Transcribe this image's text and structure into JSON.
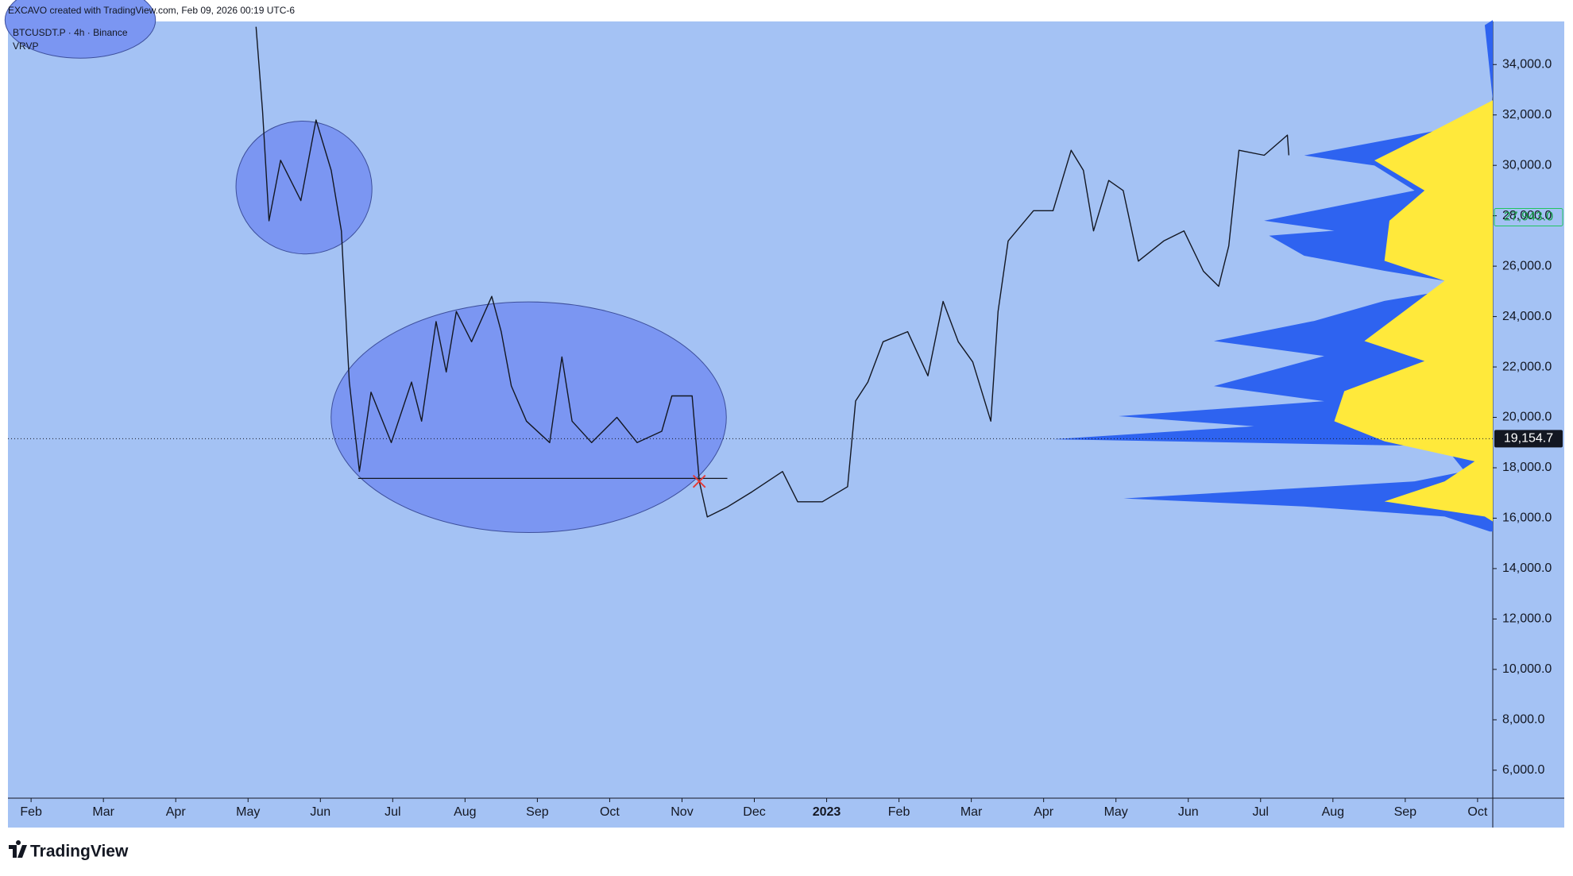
{
  "header": "EXCAVO created with TradingView.com, Feb 09, 2026 00:19 UTC-6",
  "chart_data": {
    "type": "line",
    "symbol": "BTCUSDT.P · 4h · Binance",
    "indicator": "VRVP",
    "color": "#131722",
    "x": [
      4.11,
      4.2,
      4.29,
      4.45,
      4.73,
      4.94,
      5.15,
      5.29,
      5.4,
      5.54,
      5.7,
      5.98,
      6.26,
      6.4,
      6.6,
      6.74,
      6.88,
      7.09,
      7.37,
      7.5,
      7.64,
      7.85,
      8.17,
      8.34,
      8.48,
      8.75,
      9.1,
      9.38,
      9.72,
      9.86,
      10.14,
      10.24,
      10.35,
      10.63,
      10.97,
      11.39,
      11.6,
      11.94,
      12.29,
      12.4,
      12.57,
      12.78,
      13.12,
      13.4,
      13.61,
      13.82,
      14.02,
      14.27,
      14.37,
      14.51,
      14.86,
      15.13,
      15.38,
      15.55,
      15.69,
      15.9,
      16.1,
      16.31,
      16.66,
      16.94,
      17.21,
      17.42,
      17.56,
      17.7,
      18.05,
      18.37,
      18.39
    ],
    "values": [
      35500,
      32150,
      27800,
      30200,
      28600,
      31800,
      29800,
      27400,
      21400,
      17850,
      21000,
      19000,
      21400,
      19850,
      23800,
      21800,
      24200,
      23000,
      24800,
      23400,
      21250,
      19850,
      19000,
      22400,
      19850,
      19000,
      20000,
      19000,
      19450,
      20850,
      20850,
      17450,
      16050,
      16450,
      17050,
      17850,
      16650,
      16650,
      17250,
      20650,
      21400,
      23000,
      23400,
      21650,
      24600,
      23000,
      22200,
      19850,
      24200,
      27000,
      28200,
      28200,
      30600,
      29800,
      27400,
      29400,
      29000,
      26200,
      27000,
      27400,
      25800,
      25200,
      26800,
      30600,
      30400,
      31200,
      30400
    ],
    "xlim": [
      0.68,
      21.21
    ],
    "xticks": [
      {
        "value": 1,
        "label": "Feb"
      },
      {
        "value": 2,
        "label": "Mar"
      },
      {
        "value": 3,
        "label": "Apr"
      },
      {
        "value": 4,
        "label": "May"
      },
      {
        "value": 5,
        "label": "Jun"
      },
      {
        "value": 6,
        "label": "Jul"
      },
      {
        "value": 7,
        "label": "Aug"
      },
      {
        "value": 8,
        "label": "Sep"
      },
      {
        "value": 9,
        "label": "Oct"
      },
      {
        "value": 10,
        "label": "Nov"
      },
      {
        "value": 11,
        "label": "Dec"
      },
      {
        "value": 12,
        "label": "2023"
      },
      {
        "value": 13,
        "label": "Feb"
      },
      {
        "value": 14,
        "label": "Mar"
      },
      {
        "value": 15,
        "label": "Apr"
      },
      {
        "value": 16,
        "label": "May"
      },
      {
        "value": 17,
        "label": "Jun"
      },
      {
        "value": 18,
        "label": "Jul"
      },
      {
        "value": 19,
        "label": "Aug"
      },
      {
        "value": 20,
        "label": "Sep"
      },
      {
        "value": 21,
        "label": "Oct"
      }
    ],
    "ylim": [
      4890,
      35710
    ],
    "yticks": [
      {
        "value": 6000,
        "label": "6,000.0"
      },
      {
        "value": 8000,
        "label": "8,000.0"
      },
      {
        "value": 10000,
        "label": "10,000.0"
      },
      {
        "value": 12000,
        "label": "12,000.0"
      },
      {
        "value": 14000,
        "label": "14,000.0"
      },
      {
        "value": 16000,
        "label": "16,000.0"
      },
      {
        "value": 18000,
        "label": "18,000.0"
      },
      {
        "value": 20000,
        "label": "20,000.0"
      },
      {
        "value": 22000,
        "label": "22,000.0"
      },
      {
        "value": 24000,
        "label": "24,000.0"
      },
      {
        "value": 26000,
        "label": "26,000.0"
      },
      {
        "value": 28000,
        "label": "28,000.0"
      },
      {
        "value": 30000,
        "label": "30,000.0"
      },
      {
        "value": 32000,
        "label": "32,000.0"
      },
      {
        "value": 34000,
        "label": "34,000.0"
      }
    ],
    "price_labels": [
      {
        "value": 19154.7,
        "label": "19,154.7"
      },
      {
        "value": 27943,
        "label": "27,943.0"
      }
    ]
  },
  "footer_logo": "TradingView"
}
